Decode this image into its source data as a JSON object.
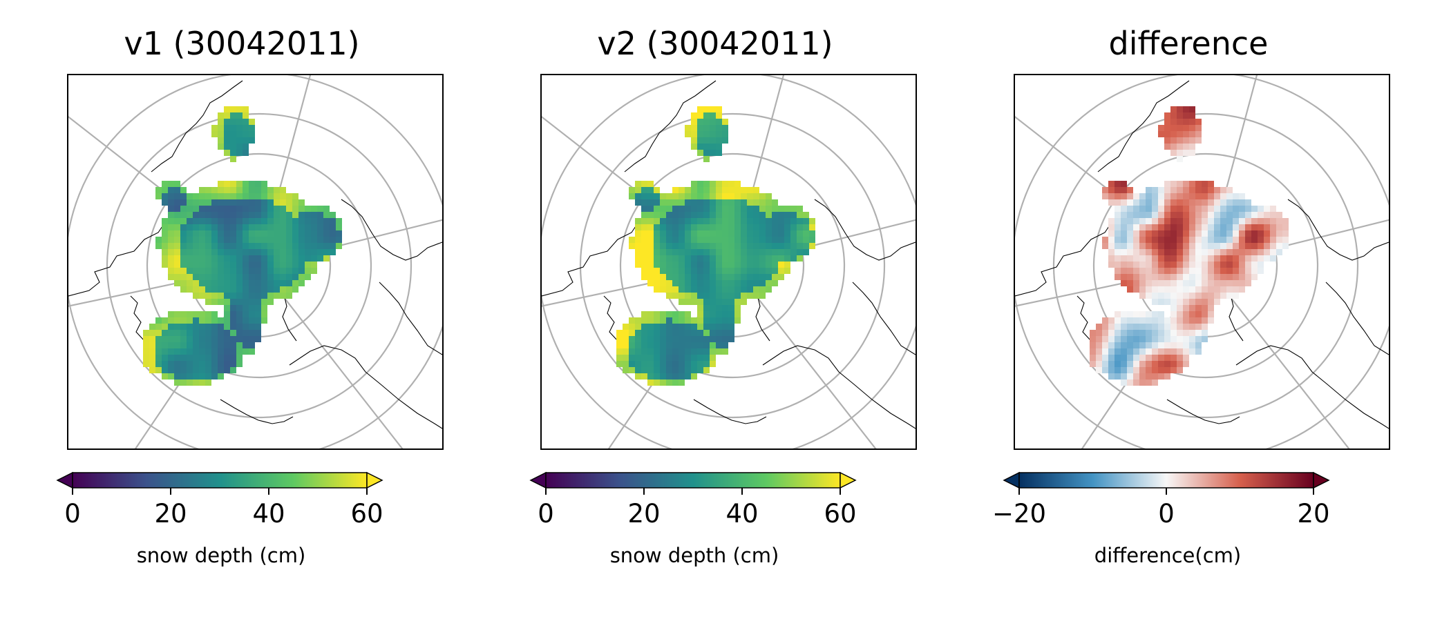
{
  "figure": {
    "panels": [
      {
        "id": "v1",
        "title": "v1 (30042011)",
        "colormap": "viridis",
        "colorbar": {
          "label": "snow depth (cm)",
          "ticks": [
            "0",
            "20",
            "40",
            "60"
          ],
          "range": [
            0,
            60
          ],
          "extend": "both"
        },
        "shows": "snow depth"
      },
      {
        "id": "v2",
        "title": "v2 (30042011)",
        "colormap": "viridis",
        "colorbar": {
          "label": "snow depth (cm)",
          "ticks": [
            "0",
            "20",
            "40",
            "60"
          ],
          "range": [
            0,
            60
          ],
          "extend": "both"
        },
        "shows": "snow depth"
      },
      {
        "id": "difference",
        "title": "difference",
        "colormap": "RdBu_r",
        "colorbar": {
          "label": "difference(cm)",
          "ticks": [
            "−20",
            "0",
            "20"
          ],
          "range": [
            -20,
            20
          ],
          "extend": "both"
        },
        "shows": "difference"
      }
    ],
    "projection": "north polar stereographic",
    "graticule": true,
    "colors": {
      "graticule": "#b0b0b0",
      "coastline": "#000000",
      "viridis_stops": [
        "#440154",
        "#3b528b",
        "#21918c",
        "#5ec962",
        "#fde725"
      ],
      "rdbu_stops": [
        "#053061",
        "#4393c3",
        "#f7f7f7",
        "#d6604d",
        "#67001f"
      ]
    }
  }
}
